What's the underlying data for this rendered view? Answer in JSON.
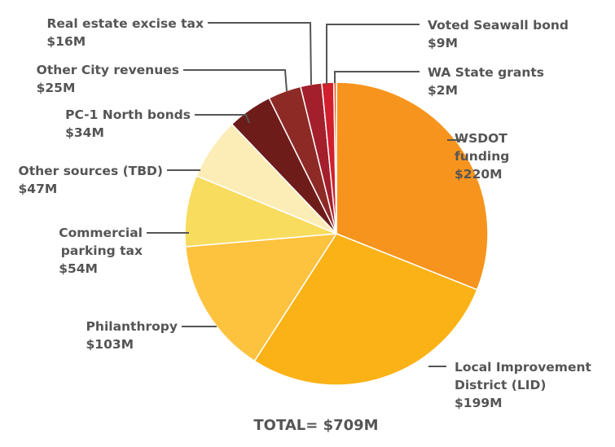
{
  "chart_data": {
    "type": "pie",
    "total_label": "TOTAL= $709M",
    "slices": [
      {
        "name": "WSDOT funding",
        "label_lines": [
          "WSDOT",
          "funding"
        ],
        "value_label": "$220M",
        "value": 220,
        "color": "#F7941D"
      },
      {
        "name": "Local Improvement District (LID)",
        "label_lines": [
          "Local Improvement",
          "District (LID)"
        ],
        "value_label": "$199M",
        "value": 199,
        "color": "#FBB216"
      },
      {
        "name": "Philanthropy",
        "label_lines": [
          "Philanthropy"
        ],
        "value_label": "$103M",
        "value": 103,
        "color": "#FDC23E"
      },
      {
        "name": "Commercial parking tax",
        "label_lines": [
          "Commercial",
          "parking tax"
        ],
        "value_label": "$54M",
        "value": 54,
        "color": "#F7DC5E"
      },
      {
        "name": "Other sources (TBD)",
        "label_lines": [
          "Other sources (TBD)"
        ],
        "value_label": "$47M",
        "value": 47,
        "color": "#FBEDB5"
      },
      {
        "name": "PC-1 North bonds",
        "label_lines": [
          "PC-1 North bonds"
        ],
        "value_label": "$34M",
        "value": 34,
        "color": "#6E1C1A"
      },
      {
        "name": "Other City revenues",
        "label_lines": [
          "Other City revenues"
        ],
        "value_label": "$25M",
        "value": 25,
        "color": "#8E2A26"
      },
      {
        "name": "Real estate excise tax",
        "label_lines": [
          "Real estate excise tax"
        ],
        "value_label": "$16M",
        "value": 16,
        "color": "#A21F2B"
      },
      {
        "name": "Voted Seawall bond",
        "label_lines": [
          "Voted Seawall bond"
        ],
        "value_label": "$9M",
        "value": 9,
        "color": "#D11F2E"
      },
      {
        "name": "WA State grants",
        "label_lines": [
          "WA State grants"
        ],
        "value_label": "$2M",
        "value": 2,
        "color": "#E25A24"
      }
    ]
  }
}
